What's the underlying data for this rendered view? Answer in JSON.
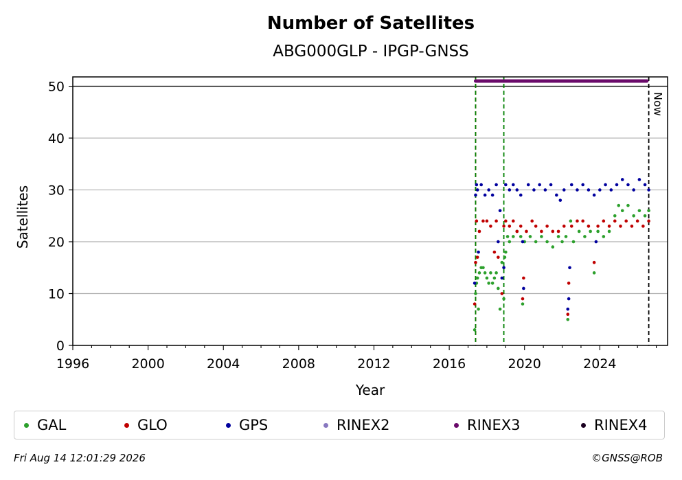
{
  "chart_data": {
    "type": "scatter",
    "title": "Number of Satellites",
    "subtitle": "ABG000GLP - IPGP-GNSS",
    "xlabel": "Year",
    "ylabel": "Satellites",
    "xlim": [
      1996,
      2027.6
    ],
    "ylim": [
      0,
      51.8
    ],
    "x_ticks": [
      "1996",
      "2000",
      "2004",
      "2008",
      "2012",
      "2016",
      "2020",
      "2024"
    ],
    "y_ticks": [
      "0",
      "10",
      "20",
      "30",
      "40",
      "50"
    ],
    "grid": "horizontal",
    "reference_line_y": 50,
    "now_label": "Now",
    "now_x": 2026.6,
    "event_lines": [
      {
        "x": 2017.4,
        "color": "#cc0000"
      },
      {
        "x": 2017.4,
        "color": "#008000"
      },
      {
        "x": 2018.9,
        "color": "#008000"
      }
    ],
    "series": [
      {
        "name": "GAL",
        "color": "#2ca02c",
        "points": [
          [
            2017.35,
            3
          ],
          [
            2017.4,
            10
          ],
          [
            2017.45,
            12
          ],
          [
            2017.5,
            13
          ],
          [
            2017.55,
            7
          ],
          [
            2017.6,
            14
          ],
          [
            2017.7,
            15
          ],
          [
            2017.8,
            15
          ],
          [
            2017.9,
            14
          ],
          [
            2018.0,
            13
          ],
          [
            2018.1,
            12
          ],
          [
            2018.2,
            14
          ],
          [
            2018.3,
            12
          ],
          [
            2018.4,
            13
          ],
          [
            2018.5,
            14
          ],
          [
            2018.6,
            11
          ],
          [
            2018.7,
            7
          ],
          [
            2018.8,
            16
          ],
          [
            2018.9,
            9
          ],
          [
            2018.95,
            17
          ],
          [
            2019.0,
            18
          ],
          [
            2019.1,
            21
          ],
          [
            2019.2,
            20
          ],
          [
            2019.4,
            21
          ],
          [
            2019.6,
            22
          ],
          [
            2019.8,
            21
          ],
          [
            2019.9,
            8
          ],
          [
            2020.0,
            20
          ],
          [
            2020.3,
            21
          ],
          [
            2020.6,
            20
          ],
          [
            2020.9,
            21
          ],
          [
            2021.2,
            20
          ],
          [
            2021.5,
            19
          ],
          [
            2021.8,
            21
          ],
          [
            2022.0,
            20
          ],
          [
            2022.2,
            21
          ],
          [
            2022.3,
            5
          ],
          [
            2022.45,
            24
          ],
          [
            2022.6,
            20
          ],
          [
            2022.9,
            22
          ],
          [
            2023.2,
            21
          ],
          [
            2023.5,
            22
          ],
          [
            2023.7,
            14
          ],
          [
            2023.9,
            22
          ],
          [
            2024.2,
            21
          ],
          [
            2024.5,
            22
          ],
          [
            2024.8,
            25
          ],
          [
            2025.0,
            27
          ],
          [
            2025.2,
            26
          ],
          [
            2025.5,
            27
          ],
          [
            2025.8,
            25
          ],
          [
            2026.1,
            26
          ],
          [
            2026.4,
            25
          ],
          [
            2026.6,
            26
          ]
        ]
      },
      {
        "name": "GLO",
        "color": "#c00000",
        "points": [
          [
            2017.35,
            8
          ],
          [
            2017.4,
            16
          ],
          [
            2017.45,
            24
          ],
          [
            2017.5,
            17
          ],
          [
            2017.6,
            22
          ],
          [
            2017.8,
            24
          ],
          [
            2018.0,
            24
          ],
          [
            2018.2,
            23
          ],
          [
            2018.4,
            18
          ],
          [
            2018.5,
            24
          ],
          [
            2018.6,
            17
          ],
          [
            2018.8,
            10
          ],
          [
            2018.9,
            23
          ],
          [
            2019.0,
            24
          ],
          [
            2019.2,
            23
          ],
          [
            2019.4,
            24
          ],
          [
            2019.6,
            22
          ],
          [
            2019.8,
            23
          ],
          [
            2019.9,
            9
          ],
          [
            2019.95,
            13
          ],
          [
            2020.1,
            22
          ],
          [
            2020.4,
            24
          ],
          [
            2020.6,
            23
          ],
          [
            2020.9,
            22
          ],
          [
            2021.2,
            23
          ],
          [
            2021.5,
            22
          ],
          [
            2021.8,
            22
          ],
          [
            2022.1,
            23
          ],
          [
            2022.3,
            6
          ],
          [
            2022.35,
            12
          ],
          [
            2022.5,
            23
          ],
          [
            2022.8,
            24
          ],
          [
            2023.1,
            24
          ],
          [
            2023.4,
            23
          ],
          [
            2023.7,
            16
          ],
          [
            2023.9,
            23
          ],
          [
            2024.2,
            24
          ],
          [
            2024.5,
            23
          ],
          [
            2024.8,
            24
          ],
          [
            2025.1,
            23
          ],
          [
            2025.4,
            24
          ],
          [
            2025.7,
            23
          ],
          [
            2026.0,
            24
          ],
          [
            2026.3,
            23
          ],
          [
            2026.6,
            24
          ]
        ]
      },
      {
        "name": "GPS",
        "color": "#00009e",
        "points": [
          [
            2017.35,
            12
          ],
          [
            2017.4,
            29
          ],
          [
            2017.45,
            31
          ],
          [
            2017.5,
            30
          ],
          [
            2017.55,
            18
          ],
          [
            2017.7,
            31
          ],
          [
            2017.9,
            29
          ],
          [
            2018.1,
            30
          ],
          [
            2018.3,
            29
          ],
          [
            2018.5,
            31
          ],
          [
            2018.6,
            20
          ],
          [
            2018.7,
            26
          ],
          [
            2018.8,
            13
          ],
          [
            2018.9,
            15
          ],
          [
            2019.0,
            31
          ],
          [
            2019.2,
            30
          ],
          [
            2019.4,
            31
          ],
          [
            2019.6,
            30
          ],
          [
            2019.8,
            29
          ],
          [
            2019.9,
            20
          ],
          [
            2019.95,
            11
          ],
          [
            2020.2,
            31
          ],
          [
            2020.5,
            30
          ],
          [
            2020.8,
            31
          ],
          [
            2021.1,
            30
          ],
          [
            2021.4,
            31
          ],
          [
            2021.7,
            29
          ],
          [
            2021.9,
            28
          ],
          [
            2022.1,
            30
          ],
          [
            2022.3,
            7
          ],
          [
            2022.35,
            9
          ],
          [
            2022.4,
            15
          ],
          [
            2022.5,
            31
          ],
          [
            2022.8,
            30
          ],
          [
            2023.1,
            31
          ],
          [
            2023.4,
            30
          ],
          [
            2023.7,
            29
          ],
          [
            2023.8,
            20
          ],
          [
            2024.0,
            30
          ],
          [
            2024.3,
            31
          ],
          [
            2024.6,
            30
          ],
          [
            2024.9,
            31
          ],
          [
            2025.2,
            32
          ],
          [
            2025.5,
            31
          ],
          [
            2025.8,
            30
          ],
          [
            2026.1,
            32
          ],
          [
            2026.4,
            31
          ],
          [
            2026.6,
            30
          ]
        ]
      },
      {
        "name": "RINEX2",
        "color": "#8878c0",
        "points": []
      },
      {
        "name": "RINEX3",
        "color": "#6a0a6a",
        "points": [
          [
            2017.4,
            51
          ],
          [
            2026.5,
            51
          ]
        ],
        "continuous": true
      },
      {
        "name": "RINEX4",
        "color": "#1a0020",
        "points": []
      }
    ]
  },
  "legend": {
    "items": [
      "GAL",
      "GLO",
      "GPS",
      "RINEX2",
      "RINEX3",
      "RINEX4"
    ],
    "colors": [
      "#2ca02c",
      "#c00000",
      "#00009e",
      "#8878c0",
      "#6a0a6a",
      "#1a0020"
    ]
  },
  "footer": {
    "timestamp": "Fri Aug 14 12:01:29 2026",
    "copyright": "©GNSS@ROB"
  }
}
